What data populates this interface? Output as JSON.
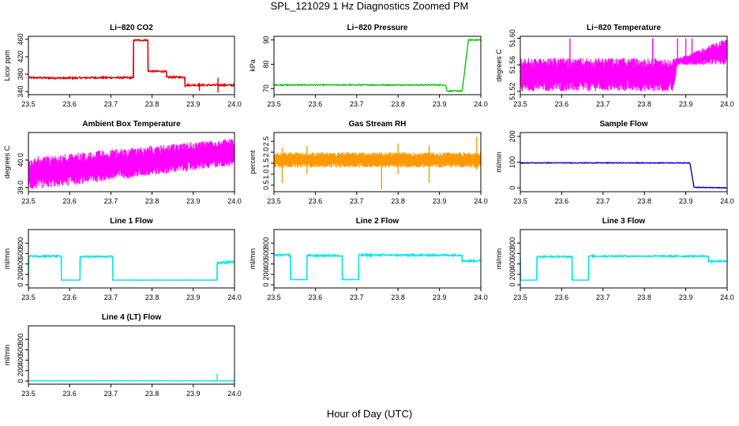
{
  "title": "SPL_121029  1 Hz Diagnostics Zoomed PM",
  "xlabel": "Hour of Day (UTC)",
  "chart_data": [
    {
      "type": "line",
      "title": "Li−820 CO2",
      "ylabel": "Licor ppm",
      "color": "#e00000",
      "xlim": [
        23.5,
        24.0
      ],
      "ylim": [
        333,
        467
      ],
      "yticks": [
        340,
        380,
        420,
        460
      ],
      "ytick_labels": [
        "340",
        "380",
        "420",
        "460"
      ],
      "xticks": [
        23.5,
        23.6,
        23.7,
        23.8,
        23.9,
        24.0
      ],
      "xtick_labels": [
        "23.5",
        "23.6",
        "23.7",
        "23.8",
        "23.9",
        "24.0"
      ],
      "x": [
        23.5,
        23.6,
        23.65,
        23.755,
        23.7551,
        23.79,
        23.7901,
        23.835,
        23.8351,
        23.88,
        23.8801,
        24.0
      ],
      "values": [
        372,
        371,
        372,
        372,
        458,
        458,
        387,
        386,
        373,
        373,
        355,
        355
      ],
      "noise": 2,
      "spikes": [
        [
          23.6,
          369,
          375
        ],
        [
          23.915,
          342,
          360
        ],
        [
          23.96,
          338,
          372
        ],
        [
          23.88,
          350,
          362
        ]
      ]
    },
    {
      "type": "line",
      "title": "Li−820 Pressure",
      "ylabel": "kPa",
      "color": "#00cc00",
      "xlim": [
        23.5,
        24.0
      ],
      "ylim": [
        67.5,
        91.5
      ],
      "yticks": [
        70,
        80,
        90
      ],
      "ytick_labels": [
        "70",
        "80",
        "90"
      ],
      "xticks": [
        23.5,
        23.6,
        23.7,
        23.8,
        23.9,
        24.0
      ],
      "xtick_labels": [
        "23.5",
        "23.6",
        "23.7",
        "23.8",
        "23.9",
        "24.0"
      ],
      "x": [
        23.5,
        23.915,
        23.918,
        23.955,
        23.965,
        23.97,
        24.0
      ],
      "values": [
        71.5,
        71.5,
        69,
        69,
        83,
        90,
        90
      ],
      "noise": 0.2
    },
    {
      "type": "band",
      "title": "Li−820 Temperature",
      "ylabel": "degrees C",
      "color": "#ff00ff",
      "xlim": [
        23.5,
        24.0
      ],
      "ylim": [
        51.515,
        51.603
      ],
      "yticks": [
        51.52,
        51.56,
        51.6
      ],
      "ytick_labels": [
        "51.52",
        "51.56",
        "51.60"
      ],
      "xticks": [
        23.5,
        23.6,
        23.7,
        23.8,
        23.9,
        24.0
      ],
      "xtick_labels": [
        "23.5",
        "23.6",
        "23.7",
        "23.8",
        "23.9",
        "24.0"
      ],
      "x": [
        23.5,
        23.87,
        23.88,
        24.0
      ],
      "low": [
        51.52,
        51.52,
        51.56,
        51.56
      ],
      "high": [
        51.57,
        51.57,
        51.57,
        51.6
      ],
      "spikes": [
        [
          23.62,
          51.56,
          51.6
        ],
        [
          23.82,
          51.56,
          51.6
        ],
        [
          23.88,
          51.56,
          51.6
        ],
        [
          23.9,
          51.56,
          51.6
        ],
        [
          23.915,
          51.56,
          51.6
        ]
      ]
    },
    {
      "type": "band",
      "title": "Ambient Box Temperature",
      "ylabel": "degrees C",
      "color": "#ff00ff",
      "xlim": [
        23.5,
        24.0
      ],
      "ylim": [
        38.85,
        41.0
      ],
      "yticks": [
        39.0,
        40.0
      ],
      "ytick_labels": [
        "39.0",
        "40.0"
      ],
      "xticks": [
        23.5,
        23.6,
        23.7,
        23.8,
        23.9,
        24.0
      ],
      "xtick_labels": [
        "23.5",
        "23.6",
        "23.7",
        "23.8",
        "23.9",
        "24.0"
      ],
      "x": [
        23.5,
        24.0
      ],
      "low": [
        38.9,
        39.8
      ],
      "high": [
        40.1,
        40.8
      ]
    },
    {
      "type": "band",
      "title": "Gas Stream RH",
      "ylabel": "percent",
      "color": "#ff9900",
      "xlim": [
        23.5,
        24.0
      ],
      "ylim": [
        0.2,
        2.9
      ],
      "yticks": [
        0.5,
        1.0,
        1.5,
        2.0,
        2.5
      ],
      "ytick_labels": [
        "0.5",
        "1.0",
        "1.5",
        "2.0",
        "2.5"
      ],
      "xticks": [
        23.5,
        23.6,
        23.7,
        23.8,
        23.9,
        24.0
      ],
      "xtick_labels": [
        "23.5",
        "23.6",
        "23.7",
        "23.8",
        "23.9",
        "24.0"
      ],
      "x": [
        23.5,
        24.0
      ],
      "low": [
        1.3,
        1.3
      ],
      "high": [
        2.0,
        2.0
      ],
      "spikes": [
        [
          23.52,
          0.6,
          2.2
        ],
        [
          23.76,
          0.3,
          2.0
        ],
        [
          23.875,
          0.6,
          2.3
        ],
        [
          23.8,
          1.0,
          2.4
        ],
        [
          23.99,
          1.2,
          2.7
        ],
        [
          23.58,
          1.0,
          2.3
        ]
      ]
    },
    {
      "type": "line",
      "title": "Sample Flow",
      "ylabel": "ml/min",
      "color": "#0000cc",
      "xlim": [
        23.5,
        24.0
      ],
      "ylim": [
        -15,
        215
      ],
      "yticks": [
        0,
        100,
        200
      ],
      "ytick_labels": [
        "0",
        "100",
        "200"
      ],
      "xticks": [
        23.5,
        23.6,
        23.7,
        23.8,
        23.9,
        24.0
      ],
      "xtick_labels": [
        "23.5",
        "23.6",
        "23.7",
        "23.8",
        "23.9",
        "24.0"
      ],
      "x": [
        23.5,
        23.91,
        23.92,
        24.0
      ],
      "values": [
        97,
        97,
        2,
        0
      ],
      "noise": 1.2
    },
    {
      "type": "line",
      "title": "Line 1 Flow",
      "ylabel": "ml/min",
      "color": "#00e5ee",
      "xlim": [
        23.5,
        24.0
      ],
      "ylim": [
        -60,
        1060
      ],
      "yticks": [
        0,
        200,
        400,
        600,
        800
      ],
      "ytick_labels": [
        "0",
        "200",
        "400",
        "600",
        "800"
      ],
      "xticks": [
        23.5,
        23.6,
        23.7,
        23.8,
        23.9,
        24.0
      ],
      "xtick_labels": [
        "23.5",
        "23.6",
        "23.7",
        "23.8",
        "23.9",
        "24.0"
      ],
      "x": [
        23.5,
        23.5,
        23.58,
        23.58,
        23.625,
        23.625,
        23.705,
        23.705,
        23.958,
        23.958,
        24.0
      ],
      "values": [
        130,
        550,
        550,
        90,
        90,
        540,
        540,
        90,
        90,
        420,
        440
      ],
      "noise": 18,
      "noise_above": 300
    },
    {
      "type": "line",
      "title": "Line 2 Flow",
      "ylabel": "ml/min",
      "color": "#00e5ee",
      "xlim": [
        23.5,
        24.0
      ],
      "ylim": [
        -60,
        1060
      ],
      "yticks": [
        0,
        200,
        400,
        600,
        800
      ],
      "ytick_labels": [
        "0",
        "200",
        "400",
        "600",
        "800"
      ],
      "xticks": [
        23.5,
        23.6,
        23.7,
        23.8,
        23.9,
        24.0
      ],
      "xtick_labels": [
        "23.5",
        "23.6",
        "23.7",
        "23.8",
        "23.9",
        "24.0"
      ],
      "x": [
        23.5,
        23.54,
        23.54,
        23.58,
        23.58,
        23.665,
        23.665,
        23.705,
        23.705,
        23.955,
        23.955,
        24.0
      ],
      "values": [
        570,
        570,
        100,
        100,
        560,
        560,
        100,
        100,
        570,
        570,
        460,
        460
      ],
      "noise": 18,
      "noise_above": 300
    },
    {
      "type": "line",
      "title": "Line 3 Flow",
      "ylabel": "ml/min",
      "color": "#00e5ee",
      "xlim": [
        23.5,
        24.0
      ],
      "ylim": [
        -60,
        1060
      ],
      "yticks": [
        0,
        200,
        400,
        600,
        800
      ],
      "ytick_labels": [
        "0",
        "200",
        "400",
        "600",
        "800"
      ],
      "xticks": [
        23.5,
        23.6,
        23.7,
        23.8,
        23.9,
        24.0
      ],
      "xtick_labels": [
        "23.5",
        "23.6",
        "23.7",
        "23.8",
        "23.9",
        "24.0"
      ],
      "x": [
        23.5,
        23.5,
        23.505,
        23.505,
        23.54,
        23.54,
        23.625,
        23.625,
        23.665,
        23.665,
        23.955,
        23.955,
        24.0
      ],
      "values": [
        520,
        90,
        90,
        90,
        90,
        540,
        540,
        90,
        90,
        550,
        550,
        450,
        450
      ],
      "noise": 15,
      "noise_above": 300
    },
    {
      "type": "line",
      "title": "Line 4 (LT) Flow",
      "ylabel": "ml/min",
      "color": "#00e5ee",
      "xlim": [
        23.5,
        24.0
      ],
      "ylim": [
        -60,
        1060
      ],
      "yticks": [
        0,
        200,
        400,
        600,
        800
      ],
      "ytick_labels": [
        "0",
        "200",
        "400",
        "600",
        "800"
      ],
      "xticks": [
        23.5,
        23.6,
        23.7,
        23.8,
        23.9,
        24.0
      ],
      "xtick_labels": [
        "23.5",
        "23.6",
        "23.7",
        "23.8",
        "23.9",
        "24.0"
      ],
      "x": [
        23.5,
        24.0
      ],
      "values": [
        5,
        5
      ],
      "noise": 2,
      "spikes": [
        [
          23.958,
          5,
          140
        ]
      ]
    }
  ]
}
